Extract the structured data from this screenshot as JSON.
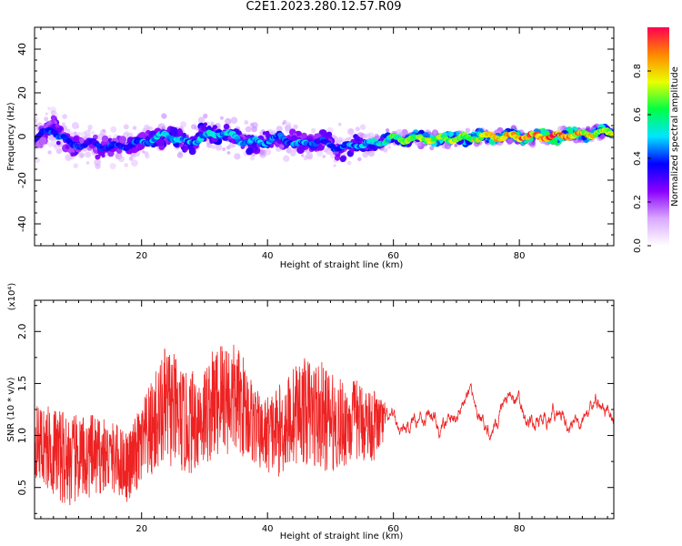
{
  "title": "C2E1.2023.280.12.57.R09",
  "chart_data": [
    {
      "type": "heatmap",
      "xlabel": "Height of straight line (km)",
      "ylabel": "Frequency (Hz)",
      "xlim": [
        3,
        95
      ],
      "ylim": [
        -50,
        50
      ],
      "xticks": [
        "20",
        "40",
        "60",
        "80"
      ],
      "yticks": [
        "40",
        "20",
        "0",
        "-20",
        "-40"
      ],
      "grid": false,
      "colorbar": {
        "label": "Normalized spectral amplitude",
        "range": [
          0,
          1
        ],
        "ticks": [
          "0.0",
          "0.2",
          "0.4",
          "0.6",
          "0.8"
        ],
        "colors": [
          "#ffffff",
          "#d9a8ff",
          "#8a00ff",
          "#0000ff",
          "#00e5ff",
          "#00ff44",
          "#eaff00",
          "#ff8800",
          "#ff0050"
        ]
      },
      "ridge": {
        "x": [
          3,
          6,
          9,
          12,
          15,
          18,
          21,
          24,
          27,
          30,
          33,
          36,
          39,
          42,
          45,
          48,
          51,
          54,
          57,
          60,
          65,
          70,
          75,
          80,
          85,
          90,
          95
        ],
        "y": [
          0,
          3,
          -4,
          -3,
          -5,
          -4,
          -2,
          1,
          -3,
          0,
          2,
          -2,
          -3,
          0,
          -4,
          -2,
          -5,
          -4,
          -3,
          -1,
          -1,
          -1,
          0,
          0,
          0,
          1,
          2
        ],
        "amp": [
          0.35,
          0.4,
          0.4,
          0.35,
          0.4,
          0.4,
          0.45,
          0.5,
          0.45,
          0.5,
          0.5,
          0.45,
          0.45,
          0.4,
          0.45,
          0.4,
          0.4,
          0.45,
          0.5,
          0.6,
          0.7,
          0.7,
          0.75,
          0.85,
          0.9,
          0.8,
          0.7
        ],
        "spread": [
          7,
          6,
          6,
          6,
          5,
          5,
          5,
          5,
          5,
          5,
          5,
          5,
          5,
          5,
          5,
          5,
          5,
          5,
          3,
          2,
          2,
          2,
          2,
          2,
          2,
          2,
          2
        ]
      }
    },
    {
      "type": "line",
      "xlabel": "Height of straight line (km)",
      "ylabel": "SNR (10 * v/v)",
      "y_multiplier": "(x10⁴)",
      "xlim": [
        3,
        95
      ],
      "ylim": [
        0.2,
        2.3
      ],
      "xticks": [
        "20",
        "40",
        "60",
        "80"
      ],
      "yticks": [
        "2.0",
        "1.5",
        "1.0",
        "0.5"
      ],
      "grid": false,
      "color": "#ee2222",
      "envelope": {
        "x": [
          3,
          6,
          9,
          12,
          15,
          18,
          21,
          24,
          27,
          30,
          33,
          36,
          39,
          42,
          45,
          48,
          51,
          54,
          57,
          60,
          65,
          70,
          75,
          80,
          85,
          90,
          95
        ],
        "mean": [
          0.95,
          0.85,
          0.75,
          0.8,
          0.8,
          0.7,
          1.0,
          1.3,
          1.1,
          1.2,
          1.4,
          1.3,
          1.0,
          1.05,
          1.25,
          1.2,
          1.1,
          1.15,
          1.1,
          1.15,
          1.1,
          1.2,
          1.2,
          1.3,
          1.1,
          1.2,
          1.15
        ],
        "amp": [
          0.35,
          0.45,
          0.45,
          0.4,
          0.35,
          0.35,
          0.45,
          0.6,
          0.5,
          0.5,
          0.6,
          0.5,
          0.35,
          0.45,
          0.5,
          0.55,
          0.45,
          0.4,
          0.35,
          0.08,
          0.1,
          0.1,
          0.1,
          0.12,
          0.1,
          0.1,
          0.1
        ]
      }
    }
  ]
}
